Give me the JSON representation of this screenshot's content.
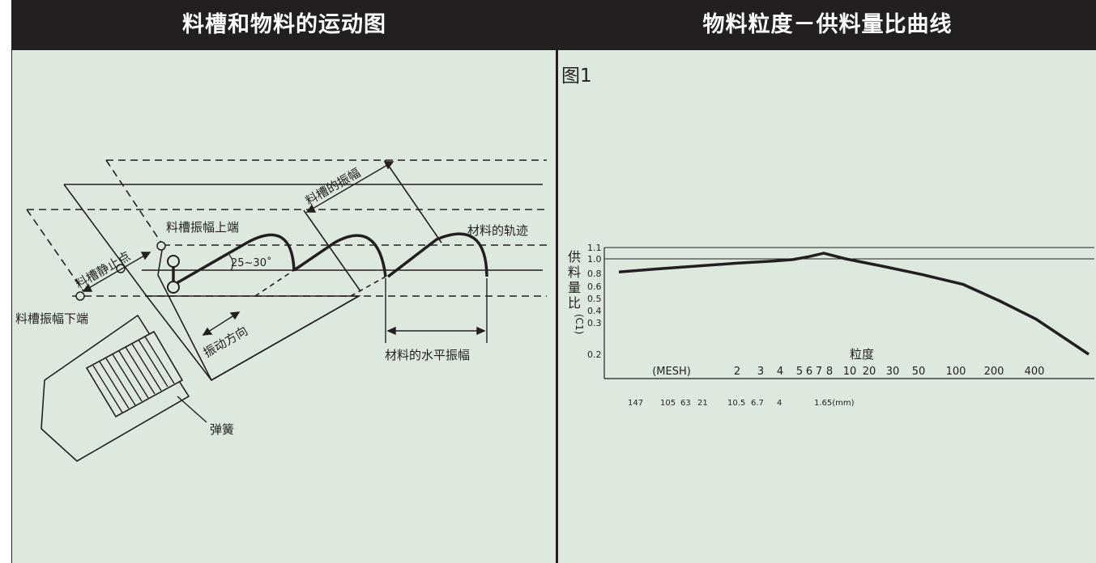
{
  "left": {
    "title": "料槽和物料的运动图",
    "labels": {
      "trough_amplitude": "料槽的振幅",
      "trough_amp_top": "料槽振幅上端",
      "material_track": "材料的轨迹",
      "trough_rest": "料槽静止点",
      "angle": "25~30˚",
      "trough_amp_bottom": "料槽振幅下端",
      "vibration_dir": "振动方向",
      "horizontal_amp": "材料的水平振幅",
      "spring": "弹簧"
    }
  },
  "right": {
    "title": "物料粒度－供料量比曲线",
    "figure_label": "图1",
    "chart_data": {
      "type": "line",
      "ylabel": "供料量比(C1)",
      "xlabel": "粒度",
      "y_ticks": [
        "1.1",
        "1.0",
        "0.8",
        "0.6",
        "0.5",
        "0.4",
        "0.3",
        "0.2"
      ],
      "x_ticks_mesh_label": "(MESH)",
      "x_ticks_mesh": [
        "2",
        "3",
        "4",
        "5",
        "6",
        "7",
        "8",
        "10",
        "20",
        "30",
        "50",
        "100",
        "200",
        "400"
      ],
      "x_ticks_mm": [
        "147",
        "105",
        "63",
        "21",
        "10.5",
        "6.7",
        "4",
        "1.65(mm)"
      ],
      "reference_lines": [
        1.1,
        1.0
      ],
      "series": [
        {
          "x": [
            "(MESH)",
            "2",
            "3",
            "4",
            "5",
            "6",
            "7",
            "8",
            "10",
            "20",
            "30",
            "50",
            "100",
            "200",
            "400"
          ],
          "y": [
            0.82,
            0.86,
            0.9,
            0.94,
            0.97,
            0.99,
            1.02,
            1.05,
            1.0,
            0.9,
            0.78,
            0.63,
            0.48,
            0.33,
            0.2
          ]
        }
      ]
    }
  }
}
